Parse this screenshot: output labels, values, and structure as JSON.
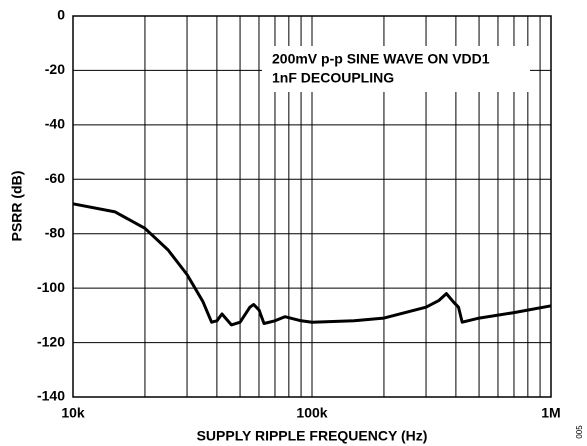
{
  "chart_data": {
    "type": "line",
    "x_label": "SUPPLY RIPPLE FREQUENCY (Hz)",
    "y_label": "PSRR (dB)",
    "annotations": [
      "200mV p-p SINE WAVE ON VDD1",
      "1nF DECOUPLING"
    ],
    "figure_id": "005",
    "xscale": "log",
    "xlim": [
      10000,
      1000000
    ],
    "xticks": [
      {
        "value": 10000,
        "label": "10k"
      },
      {
        "value": 100000,
        "label": "100k"
      },
      {
        "value": 1000000,
        "label": "1M"
      }
    ],
    "xminor": [
      20000,
      30000,
      40000,
      50000,
      60000,
      70000,
      80000,
      90000,
      200000,
      300000,
      400000,
      500000,
      600000,
      700000,
      800000,
      900000
    ],
    "ylim": [
      -140,
      0
    ],
    "yticks": [
      -140,
      -120,
      -100,
      -80,
      -60,
      -40,
      -20,
      0
    ],
    "grid": true,
    "series": [
      {
        "color": "#000000",
        "x": [
          10000,
          15000,
          20000,
          25000,
          30000,
          35000,
          38000,
          40000,
          42000,
          46000,
          50000,
          55000,
          57000,
          60000,
          63000,
          70000,
          77000,
          90000,
          100000,
          150000,
          200000,
          300000,
          340000,
          365000,
          390000,
          410000,
          425000,
          500000,
          700000,
          1000000
        ],
        "values": [
          -69,
          -72,
          -78,
          -86,
          -95,
          -105,
          -112.5,
          -112,
          -109.5,
          -113.5,
          -112.5,
          -107,
          -106,
          -108,
          -113,
          -112,
          -110.5,
          -112,
          -112.5,
          -112,
          -111,
          -107,
          -104.5,
          -102,
          -105,
          -107,
          -112.5,
          -111,
          -109,
          -106.5
        ]
      }
    ]
  }
}
